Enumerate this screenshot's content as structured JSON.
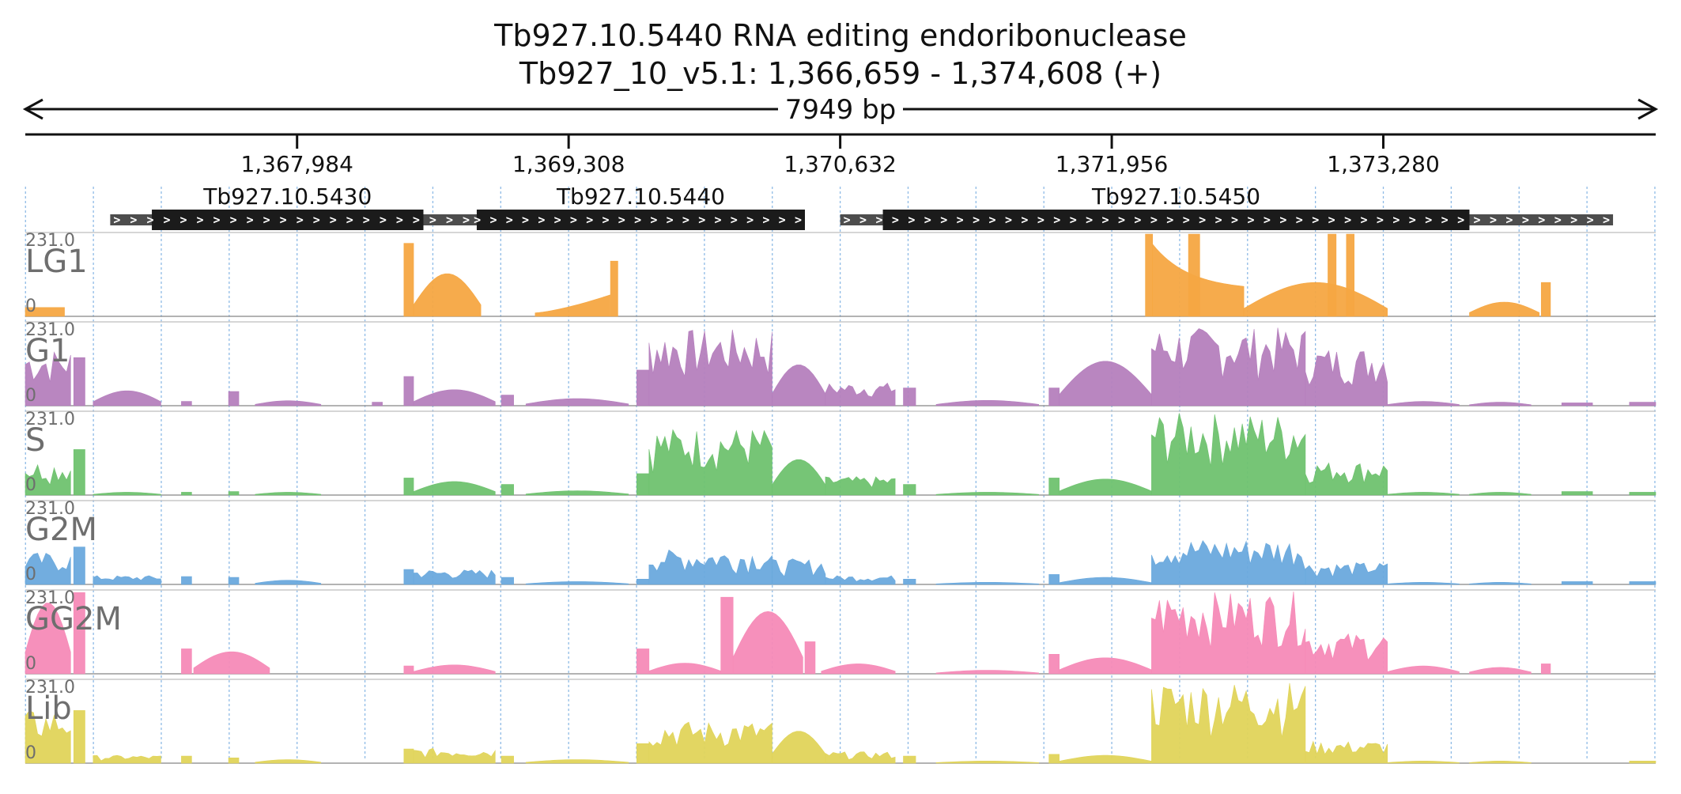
{
  "header": {
    "title_line1": "Tb927.10.5440  RNA editing endoribonuclease",
    "title_line2": "Tb927_10_v5.1: 1,366,659 - 1,374,608 (+)",
    "span_label": "7949 bp"
  },
  "chart_data": {
    "type": "area",
    "title": "Tb927.10.5440  RNA editing endoribonuclease",
    "subtitle": "Tb927_10_v5.1: 1,366,659 - 1,374,608 (+)",
    "x_range": [
      1366659,
      1374608
    ],
    "span_label": "7949 bp",
    "x_ticks": [
      1367984,
      1369308,
      1370632,
      1371956,
      1373280
    ],
    "x_tick_labels": [
      "1,367,984",
      "1,369,308",
      "1,370,632",
      "1,371,956",
      "1,373,280"
    ],
    "genes": [
      {
        "name": "Tb927.10.5430",
        "start": 1367276,
        "end": 1368600,
        "utr5_start": 1367073,
        "utr3_end": 1368922,
        "strand": "+"
      },
      {
        "name": "Tb927.10.5440",
        "start": 1368860,
        "end": 1370460,
        "utr5_start": 1368830,
        "utr3_end": 1370460,
        "strand": "+"
      },
      {
        "name": "Tb927.10.5450",
        "start": 1370840,
        "end": 1373700,
        "utr5_start": 1370632,
        "utr3_end": 1374400,
        "strand": "+"
      }
    ],
    "tracks": [
      {
        "name": "LG1",
        "color": "#f5a742",
        "max_label": "231.0",
        "min_label": "0",
        "ymax": 231.0,
        "segments": [
          {
            "s": 1366659,
            "e": 1366850,
            "v": 25,
            "sh": "flat"
          },
          {
            "s": 1368505,
            "e": 1368552,
            "v": 205,
            "sh": "flat"
          },
          {
            "s": 1368552,
            "e": 1368880,
            "v": 120,
            "sh": "hump"
          },
          {
            "s": 1369145,
            "e": 1369510,
            "v": 62,
            "sh": "ramp"
          },
          {
            "s": 1369512,
            "e": 1369548,
            "v": 155,
            "sh": "flat"
          },
          {
            "s": 1372120,
            "e": 1372155,
            "v": 231,
            "sh": "flat"
          },
          {
            "s": 1372155,
            "e": 1372600,
            "v": 210,
            "sh": "decay"
          },
          {
            "s": 1372330,
            "e": 1372385,
            "v": 231,
            "sh": "flat"
          },
          {
            "s": 1372600,
            "e": 1373300,
            "v": 95,
            "sh": "hump"
          },
          {
            "s": 1373010,
            "e": 1373050,
            "v": 231,
            "sh": "flat"
          },
          {
            "s": 1373100,
            "e": 1373138,
            "v": 231,
            "sh": "flat"
          },
          {
            "s": 1373700,
            "e": 1374040,
            "v": 40,
            "sh": "hump"
          },
          {
            "s": 1374050,
            "e": 1374095,
            "v": 95,
            "sh": "flat"
          }
        ]
      },
      {
        "name": "G1",
        "color": "#b57fbd",
        "max_label": "231.0",
        "min_label": "0",
        "ymax": 231.0,
        "segments": [
          {
            "s": 1366659,
            "e": 1366880,
            "v": 160,
            "sh": "jag"
          },
          {
            "s": 1366895,
            "e": 1366950,
            "v": 135,
            "sh": "flat"
          },
          {
            "s": 1366990,
            "e": 1367320,
            "v": 42,
            "sh": "hump"
          },
          {
            "s": 1367420,
            "e": 1367470,
            "v": 12,
            "sh": "flat"
          },
          {
            "s": 1367650,
            "e": 1367700,
            "v": 40,
            "sh": "flat"
          },
          {
            "s": 1367780,
            "e": 1368100,
            "v": 14,
            "sh": "hump"
          },
          {
            "s": 1368350,
            "e": 1368400,
            "v": 10,
            "sh": "flat"
          },
          {
            "s": 1368505,
            "e": 1368552,
            "v": 82,
            "sh": "flat"
          },
          {
            "s": 1368552,
            "e": 1368950,
            "v": 45,
            "sh": "hump"
          },
          {
            "s": 1368980,
            "e": 1369040,
            "v": 30,
            "sh": "flat"
          },
          {
            "s": 1369100,
            "e": 1369600,
            "v": 20,
            "sh": "hump"
          },
          {
            "s": 1369640,
            "e": 1369700,
            "v": 100,
            "sh": "flat"
          },
          {
            "s": 1369700,
            "e": 1370300,
            "v": 215,
            "sh": "jag"
          },
          {
            "s": 1370300,
            "e": 1370560,
            "v": 115,
            "sh": "hump"
          },
          {
            "s": 1370560,
            "e": 1370900,
            "v": 65,
            "sh": "jag"
          },
          {
            "s": 1370940,
            "e": 1371000,
            "v": 50,
            "sh": "flat"
          },
          {
            "s": 1371100,
            "e": 1371600,
            "v": 15,
            "sh": "hump"
          },
          {
            "s": 1371650,
            "e": 1371700,
            "v": 50,
            "sh": "flat"
          },
          {
            "s": 1371700,
            "e": 1372150,
            "v": 125,
            "sh": "hump"
          },
          {
            "s": 1372150,
            "e": 1372900,
            "v": 220,
            "sh": "jag"
          },
          {
            "s": 1372900,
            "e": 1373300,
            "v": 165,
            "sh": "jag"
          },
          {
            "s": 1373300,
            "e": 1373650,
            "v": 12,
            "sh": "hump"
          },
          {
            "s": 1373700,
            "e": 1374000,
            "v": 10,
            "sh": "hump"
          },
          {
            "s": 1374150,
            "e": 1374300,
            "v": 8,
            "sh": "flat"
          },
          {
            "s": 1374480,
            "e": 1374608,
            "v": 10,
            "sh": "flat"
          }
        ]
      },
      {
        "name": "S",
        "color": "#6fc26f",
        "max_label": "231.0",
        "min_label": "0",
        "ymax": 231.0,
        "segments": [
          {
            "s": 1366659,
            "e": 1366880,
            "v": 95,
            "sh": "jag"
          },
          {
            "s": 1366895,
            "e": 1366950,
            "v": 128,
            "sh": "flat"
          },
          {
            "s": 1366990,
            "e": 1367320,
            "v": 8,
            "sh": "hump"
          },
          {
            "s": 1367420,
            "e": 1367470,
            "v": 8,
            "sh": "flat"
          },
          {
            "s": 1367650,
            "e": 1367700,
            "v": 10,
            "sh": "flat"
          },
          {
            "s": 1367780,
            "e": 1368100,
            "v": 8,
            "sh": "hump"
          },
          {
            "s": 1368505,
            "e": 1368552,
            "v": 48,
            "sh": "flat"
          },
          {
            "s": 1368552,
            "e": 1368950,
            "v": 38,
            "sh": "hump"
          },
          {
            "s": 1368980,
            "e": 1369040,
            "v": 30,
            "sh": "flat"
          },
          {
            "s": 1369100,
            "e": 1369600,
            "v": 12,
            "sh": "hump"
          },
          {
            "s": 1369640,
            "e": 1369700,
            "v": 60,
            "sh": "flat"
          },
          {
            "s": 1369700,
            "e": 1370300,
            "v": 190,
            "sh": "jag"
          },
          {
            "s": 1370300,
            "e": 1370560,
            "v": 100,
            "sh": "hump"
          },
          {
            "s": 1370560,
            "e": 1370900,
            "v": 52,
            "sh": "jag"
          },
          {
            "s": 1370940,
            "e": 1371000,
            "v": 30,
            "sh": "flat"
          },
          {
            "s": 1371100,
            "e": 1371600,
            "v": 8,
            "sh": "hump"
          },
          {
            "s": 1371650,
            "e": 1371700,
            "v": 48,
            "sh": "flat"
          },
          {
            "s": 1371700,
            "e": 1372150,
            "v": 45,
            "sh": "hump"
          },
          {
            "s": 1372150,
            "e": 1372900,
            "v": 231,
            "sh": "jag"
          },
          {
            "s": 1372900,
            "e": 1373300,
            "v": 95,
            "sh": "jag"
          },
          {
            "s": 1373300,
            "e": 1373650,
            "v": 8,
            "sh": "hump"
          },
          {
            "s": 1373700,
            "e": 1374000,
            "v": 8,
            "sh": "hump"
          },
          {
            "s": 1374150,
            "e": 1374300,
            "v": 10,
            "sh": "flat"
          },
          {
            "s": 1374480,
            "e": 1374608,
            "v": 8,
            "sh": "flat"
          }
        ]
      },
      {
        "name": "G2M",
        "color": "#6aa9dd",
        "max_label": "231.0",
        "min_label": "0",
        "ymax": 231.0,
        "segments": [
          {
            "s": 1366659,
            "e": 1366880,
            "v": 90,
            "sh": "jag"
          },
          {
            "s": 1366895,
            "e": 1366950,
            "v": 105,
            "sh": "flat"
          },
          {
            "s": 1366990,
            "e": 1367320,
            "v": 25,
            "sh": "jag"
          },
          {
            "s": 1367420,
            "e": 1367470,
            "v": 22,
            "sh": "flat"
          },
          {
            "s": 1367650,
            "e": 1367700,
            "v": 20,
            "sh": "flat"
          },
          {
            "s": 1367780,
            "e": 1368100,
            "v": 12,
            "sh": "hump"
          },
          {
            "s": 1368505,
            "e": 1368552,
            "v": 42,
            "sh": "flat"
          },
          {
            "s": 1368552,
            "e": 1368950,
            "v": 42,
            "sh": "jag"
          },
          {
            "s": 1368980,
            "e": 1369040,
            "v": 20,
            "sh": "flat"
          },
          {
            "s": 1369100,
            "e": 1369600,
            "v": 8,
            "sh": "hump"
          },
          {
            "s": 1369640,
            "e": 1369700,
            "v": 15,
            "sh": "flat"
          },
          {
            "s": 1369700,
            "e": 1370300,
            "v": 98,
            "sh": "jag"
          },
          {
            "s": 1370300,
            "e": 1370560,
            "v": 72,
            "sh": "jag"
          },
          {
            "s": 1370560,
            "e": 1370900,
            "v": 25,
            "sh": "jag"
          },
          {
            "s": 1370940,
            "e": 1371000,
            "v": 15,
            "sh": "flat"
          },
          {
            "s": 1371100,
            "e": 1371600,
            "v": 6,
            "sh": "hump"
          },
          {
            "s": 1371650,
            "e": 1371700,
            "v": 28,
            "sh": "flat"
          },
          {
            "s": 1371700,
            "e": 1372150,
            "v": 20,
            "sh": "hump"
          },
          {
            "s": 1372150,
            "e": 1372900,
            "v": 130,
            "sh": "jag"
          },
          {
            "s": 1372900,
            "e": 1373300,
            "v": 62,
            "sh": "jag"
          },
          {
            "s": 1373300,
            "e": 1373650,
            "v": 6,
            "sh": "hump"
          },
          {
            "s": 1373700,
            "e": 1374000,
            "v": 6,
            "sh": "hump"
          },
          {
            "s": 1374150,
            "e": 1374300,
            "v": 8,
            "sh": "flat"
          },
          {
            "s": 1374480,
            "e": 1374608,
            "v": 8,
            "sh": "flat"
          }
        ]
      },
      {
        "name": "GG2M",
        "color": "#f68ab7",
        "max_label": "231.0",
        "min_label": "0",
        "ymax": 231.0,
        "segments": [
          {
            "s": 1366659,
            "e": 1366880,
            "v": 200,
            "sh": "hump"
          },
          {
            "s": 1366895,
            "e": 1366950,
            "v": 228,
            "sh": "flat"
          },
          {
            "s": 1367420,
            "e": 1367470,
            "v": 70,
            "sh": "flat"
          },
          {
            "s": 1367480,
            "e": 1367850,
            "v": 62,
            "sh": "hump"
          },
          {
            "s": 1368505,
            "e": 1368552,
            "v": 22,
            "sh": "flat"
          },
          {
            "s": 1368552,
            "e": 1368950,
            "v": 25,
            "sh": "hump"
          },
          {
            "s": 1369640,
            "e": 1369700,
            "v": 70,
            "sh": "flat"
          },
          {
            "s": 1369700,
            "e": 1370050,
            "v": 30,
            "sh": "hump"
          },
          {
            "s": 1370050,
            "e": 1370110,
            "v": 215,
            "sh": "flat"
          },
          {
            "s": 1370110,
            "e": 1370450,
            "v": 175,
            "sh": "hump"
          },
          {
            "s": 1370460,
            "e": 1370510,
            "v": 90,
            "sh": "flat"
          },
          {
            "s": 1370540,
            "e": 1370900,
            "v": 28,
            "sh": "hump"
          },
          {
            "s": 1371100,
            "e": 1371600,
            "v": 10,
            "sh": "hump"
          },
          {
            "s": 1371650,
            "e": 1371700,
            "v": 55,
            "sh": "flat"
          },
          {
            "s": 1371700,
            "e": 1372150,
            "v": 45,
            "sh": "hump"
          },
          {
            "s": 1372150,
            "e": 1372900,
            "v": 231,
            "sh": "jag"
          },
          {
            "s": 1372900,
            "e": 1373300,
            "v": 115,
            "sh": "jag"
          },
          {
            "s": 1373300,
            "e": 1373650,
            "v": 22,
            "sh": "hump"
          },
          {
            "s": 1373700,
            "e": 1374000,
            "v": 18,
            "sh": "hump"
          },
          {
            "s": 1374050,
            "e": 1374095,
            "v": 28,
            "sh": "flat"
          }
        ]
      },
      {
        "name": "Lib",
        "color": "#e0d45a",
        "max_label": "231.0",
        "min_label": "0",
        "ymax": 231.0,
        "segments": [
          {
            "s": 1366659,
            "e": 1366880,
            "v": 150,
            "sh": "jag"
          },
          {
            "s": 1366895,
            "e": 1366950,
            "v": 148,
            "sh": "flat"
          },
          {
            "s": 1366990,
            "e": 1367320,
            "v": 22,
            "sh": "jag"
          },
          {
            "s": 1367420,
            "e": 1367470,
            "v": 20,
            "sh": "flat"
          },
          {
            "s": 1367650,
            "e": 1367700,
            "v": 15,
            "sh": "flat"
          },
          {
            "s": 1367780,
            "e": 1368100,
            "v": 10,
            "sh": "hump"
          },
          {
            "s": 1368505,
            "e": 1368552,
            "v": 40,
            "sh": "flat"
          },
          {
            "s": 1368552,
            "e": 1368950,
            "v": 42,
            "sh": "jag"
          },
          {
            "s": 1368980,
            "e": 1369040,
            "v": 20,
            "sh": "flat"
          },
          {
            "s": 1369100,
            "e": 1369600,
            "v": 10,
            "sh": "hump"
          },
          {
            "s": 1369640,
            "e": 1369700,
            "v": 55,
            "sh": "flat"
          },
          {
            "s": 1369700,
            "e": 1370300,
            "v": 118,
            "sh": "jag"
          },
          {
            "s": 1370300,
            "e": 1370560,
            "v": 90,
            "sh": "hump"
          },
          {
            "s": 1370560,
            "e": 1370900,
            "v": 32,
            "sh": "jag"
          },
          {
            "s": 1370940,
            "e": 1371000,
            "v": 20,
            "sh": "flat"
          },
          {
            "s": 1371100,
            "e": 1371600,
            "v": 6,
            "sh": "hump"
          },
          {
            "s": 1371650,
            "e": 1371700,
            "v": 25,
            "sh": "flat"
          },
          {
            "s": 1371700,
            "e": 1372150,
            "v": 22,
            "sh": "hump"
          },
          {
            "s": 1372150,
            "e": 1372900,
            "v": 231,
            "sh": "jag"
          },
          {
            "s": 1372900,
            "e": 1373300,
            "v": 62,
            "sh": "jag"
          },
          {
            "s": 1373300,
            "e": 1373650,
            "v": 6,
            "sh": "hump"
          },
          {
            "s": 1373700,
            "e": 1374000,
            "v": 6,
            "sh": "hump"
          },
          {
            "s": 1374480,
            "e": 1374608,
            "v": 6,
            "sh": "flat"
          }
        ]
      }
    ]
  }
}
